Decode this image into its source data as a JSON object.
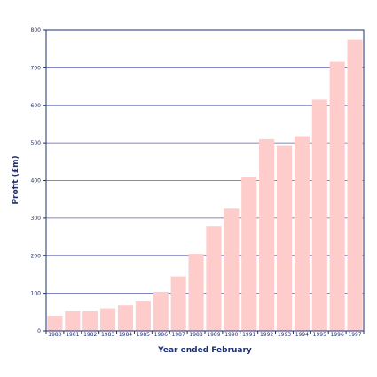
{
  "chart_data": {
    "type": "bar",
    "title": "",
    "xlabel": "Year ended February",
    "ylabel": "Profit (£m)",
    "categories": [
      "1980",
      "1981",
      "1982",
      "1983",
      "1984",
      "1985",
      "1986",
      "1987",
      "1988",
      "1989",
      "1990",
      "1991",
      "1992",
      "1993",
      "1994",
      "1995",
      "1996",
      "1997"
    ],
    "values": [
      40,
      52,
      52,
      60,
      68,
      80,
      104,
      145,
      205,
      278,
      325,
      410,
      510,
      492,
      518,
      615,
      716,
      775
    ],
    "ylim": [
      0,
      800
    ],
    "yticks": [
      0,
      100,
      200,
      300,
      400,
      500,
      600,
      700,
      800
    ],
    "grid": true,
    "legend": "none",
    "colors": {
      "bar": "#ffcccc",
      "gridline": "#5a5fb0",
      "axis": "#1f2f6f",
      "text": "#1f2f6f"
    }
  }
}
